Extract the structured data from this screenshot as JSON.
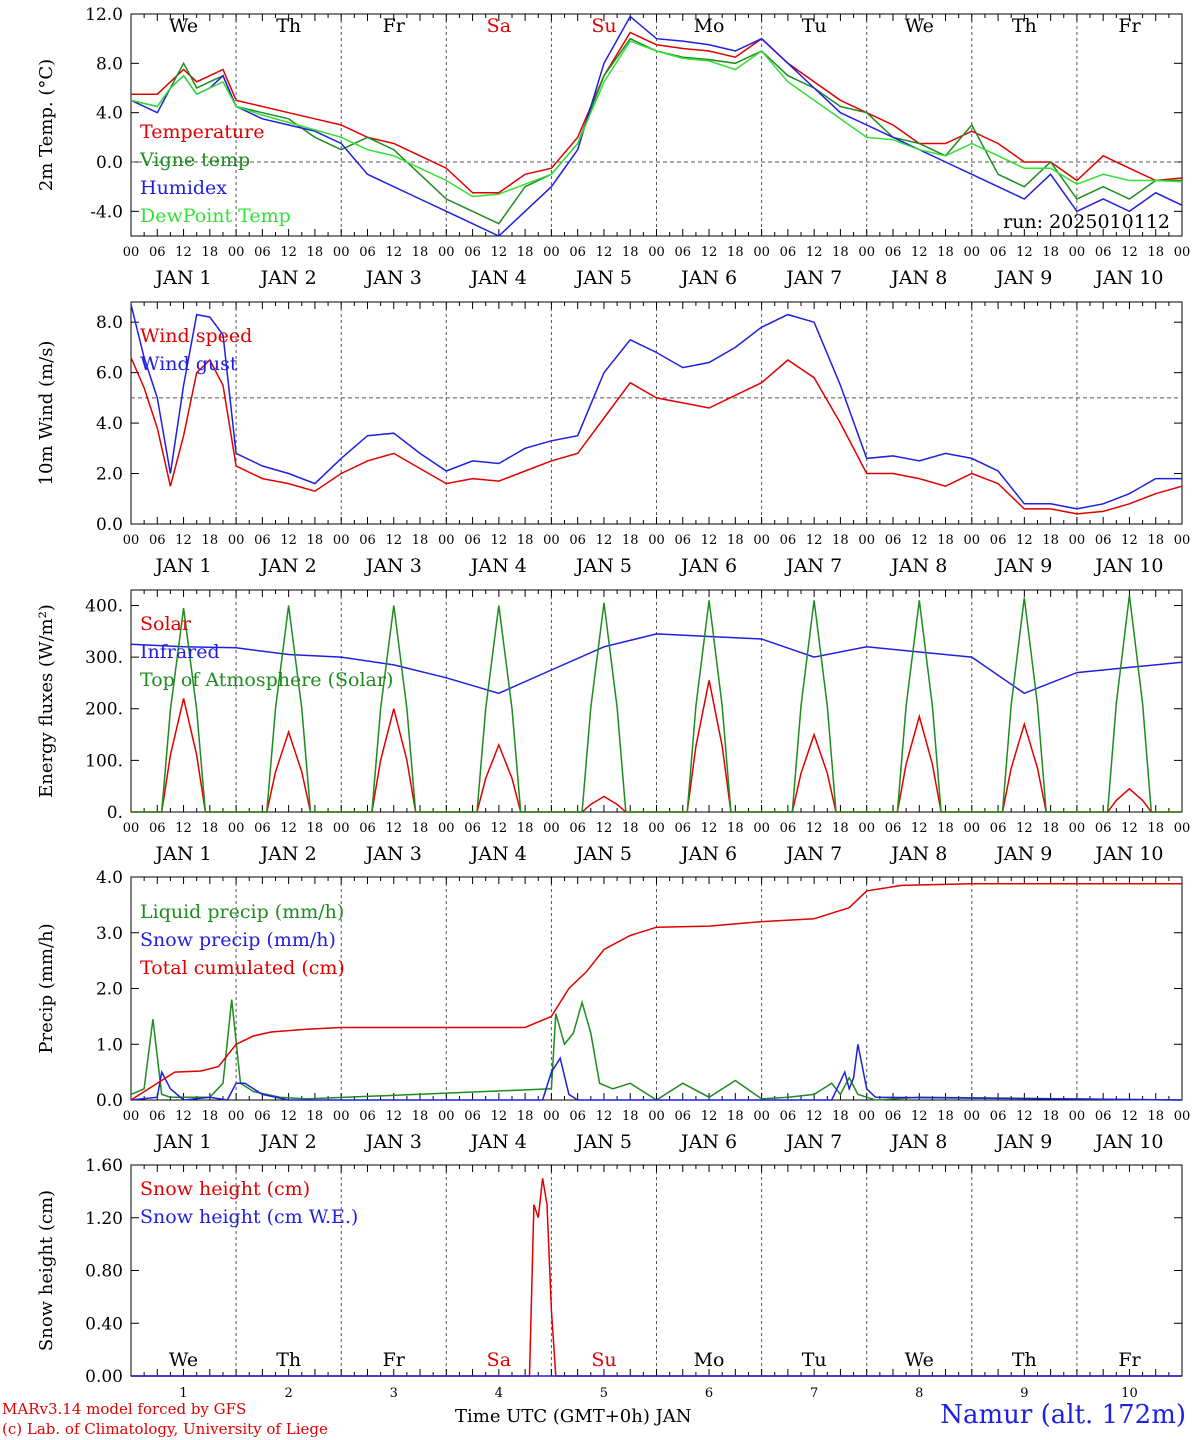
{
  "meta": {
    "run_label": "run: 2025010112",
    "footer_line1": "MARv3.14 model forced by GFS",
    "footer_line2": "(c) Lab. of Climatology, University of Liege",
    "station": "Namur (alt. 172m)",
    "time_axis_label": "Time UTC (GMT+0h) JAN"
  },
  "colors": {
    "red": "#e00000",
    "darkgreen": "#1e8c1e",
    "blue": "#1f1fe0",
    "lightgreen": "#33e033",
    "grid": "#666666"
  },
  "days": {
    "weekday_labels": [
      "We",
      "Th",
      "Fr",
      "Sa",
      "Su",
      "Mo",
      "Tu",
      "We",
      "Th",
      "Fr"
    ],
    "weekend_flags": [
      false,
      false,
      false,
      true,
      true,
      false,
      false,
      false,
      false,
      false
    ],
    "date_labels": [
      "JAN  1",
      "JAN  2",
      "JAN  3",
      "JAN  4",
      "JAN  5",
      "JAN  6",
      "JAN  7",
      "JAN  8",
      "JAN  9",
      "JAN 10"
    ],
    "day_numbers": [
      "1",
      "2",
      "3",
      "4",
      "5",
      "6",
      "7",
      "8",
      "9",
      "10"
    ],
    "hour_ticks": [
      "00",
      "06",
      "12",
      "18"
    ]
  },
  "chart_data": [
    {
      "type": "line",
      "ylabel": "2m Temp. (°C)",
      "ylim": [
        -6,
        12
      ],
      "yticks": [
        "-4.0",
        "0.0",
        "4.0",
        "8.0",
        "12.0"
      ],
      "ytick_values": [
        -4,
        0,
        4,
        8,
        12
      ],
      "ref_line": 0,
      "x_unit": "hours since JAN 1 00 UTC",
      "xlim": [
        0,
        240
      ],
      "series": [
        {
          "name": "Temperature",
          "color": "red",
          "x": [
            0,
            6,
            9,
            12,
            15,
            18,
            21,
            24,
            30,
            36,
            42,
            48,
            54,
            60,
            66,
            72,
            78,
            84,
            90,
            96,
            102,
            108,
            114,
            120,
            126,
            132,
            138,
            144,
            150,
            156,
            162,
            168,
            174,
            180,
            186,
            192,
            198,
            204,
            210,
            216,
            222,
            228,
            234,
            240
          ],
          "values": [
            5.5,
            5.5,
            6.5,
            7.5,
            6.5,
            7,
            7.5,
            5,
            4.5,
            4,
            3.5,
            3,
            2,
            1.5,
            0.5,
            -0.5,
            -2.5,
            -2.5,
            -1,
            -0.5,
            2,
            7,
            10.5,
            9.5,
            9.2,
            9,
            8.5,
            10,
            8,
            6.5,
            5,
            4,
            3,
            1.5,
            1.5,
            2.5,
            1.5,
            0,
            0,
            -1.5,
            0.5,
            -0.5,
            -1.5,
            -1.3
          ]
        },
        {
          "name": "Vigne temp",
          "color": "darkgreen",
          "x": [
            0,
            6,
            9,
            12,
            15,
            18,
            21,
            24,
            30,
            36,
            42,
            48,
            54,
            60,
            66,
            72,
            78,
            84,
            90,
            96,
            102,
            108,
            114,
            120,
            126,
            132,
            138,
            144,
            150,
            156,
            162,
            168,
            174,
            180,
            186,
            192,
            198,
            204,
            210,
            216,
            222,
            228,
            234,
            240
          ],
          "values": [
            5,
            4.5,
            6,
            8,
            6,
            6.5,
            7,
            4.5,
            4,
            3.5,
            2,
            1,
            2,
            1,
            -1,
            -3,
            -4,
            -5,
            -2,
            -1,
            1.5,
            7,
            10,
            9,
            8.5,
            8.3,
            8,
            9,
            7,
            6,
            4.5,
            4,
            2,
            1.5,
            0.5,
            3,
            -1,
            -2,
            0,
            -3,
            -2,
            -3,
            -1.5,
            -1.5
          ]
        },
        {
          "name": "Humidex",
          "color": "blue",
          "x": [
            0,
            6,
            9,
            12,
            15,
            18,
            21,
            24,
            30,
            36,
            42,
            48,
            54,
            60,
            66,
            72,
            78,
            84,
            90,
            96,
            102,
            108,
            114,
            120,
            126,
            132,
            138,
            144,
            150,
            156,
            162,
            168,
            174,
            180,
            186,
            192,
            198,
            204,
            210,
            216,
            222,
            228,
            234,
            240
          ],
          "values": [
            5,
            4,
            6,
            7,
            5.5,
            6,
            7,
            4.5,
            3.5,
            3,
            2.5,
            1.5,
            -1,
            -2,
            -3,
            -4,
            -5,
            -6,
            -4,
            -2,
            1,
            8,
            11.8,
            10,
            9.8,
            9.5,
            9,
            10,
            8,
            6,
            4,
            3,
            2,
            1,
            0,
            -1,
            -2,
            -3,
            -1,
            -4,
            -3,
            -4,
            -2.5,
            -3.5
          ]
        },
        {
          "name": "DewPoint Temp",
          "color": "lightgreen",
          "x": [
            0,
            6,
            9,
            12,
            15,
            18,
            21,
            24,
            30,
            36,
            42,
            48,
            54,
            60,
            66,
            72,
            78,
            84,
            90,
            96,
            102,
            108,
            114,
            120,
            126,
            132,
            138,
            144,
            150,
            156,
            162,
            168,
            174,
            180,
            186,
            192,
            198,
            204,
            210,
            216,
            222,
            228,
            234,
            240
          ],
          "values": [
            5,
            4.5,
            6,
            7,
            5.5,
            6,
            6.5,
            4.5,
            3.8,
            3.2,
            2.6,
            2,
            1,
            0.5,
            -0.5,
            -1.5,
            -2.8,
            -2.6,
            -1.8,
            -1,
            1.5,
            6.5,
            9.8,
            9,
            8.4,
            8.2,
            7.5,
            9,
            6.5,
            5,
            3.5,
            2,
            1.8,
            1,
            0.5,
            1.5,
            0.5,
            -0.5,
            -0.5,
            -1.8,
            -1,
            -1.5,
            -1.5,
            -1.6
          ]
        }
      ]
    },
    {
      "type": "line",
      "ylabel": "10m Wind (m/s)",
      "ylim": [
        0,
        8.8
      ],
      "yticks": [
        "0.0",
        "2.0",
        "4.0",
        "6.0",
        "8.0"
      ],
      "ytick_values": [
        0,
        2,
        4,
        6,
        8
      ],
      "ref_line": 5,
      "x_unit": "hours since JAN 1 00 UTC",
      "xlim": [
        0,
        240
      ],
      "series": [
        {
          "name": "Wind speed",
          "color": "red",
          "x": [
            0,
            3,
            6,
            9,
            12,
            15,
            18,
            21,
            24,
            30,
            36,
            42,
            48,
            54,
            60,
            66,
            72,
            78,
            84,
            90,
            96,
            102,
            108,
            114,
            120,
            126,
            132,
            138,
            144,
            150,
            156,
            162,
            168,
            174,
            180,
            186,
            192,
            198,
            204,
            210,
            216,
            222,
            228,
            234,
            240
          ],
          "values": [
            6.6,
            5.4,
            3.8,
            1.5,
            3.5,
            6,
            6.5,
            5.5,
            2.3,
            1.8,
            1.6,
            1.3,
            2,
            2.5,
            2.8,
            2.2,
            1.6,
            1.8,
            1.7,
            2.1,
            2.5,
            2.8,
            4.2,
            5.6,
            5,
            4.8,
            4.6,
            5.1,
            5.6,
            6.5,
            5.8,
            4,
            2,
            2,
            1.8,
            1.5,
            2,
            1.6,
            0.6,
            0.6,
            0.4,
            0.5,
            0.8,
            1.2,
            1.5
          ]
        },
        {
          "name": "Wind gust",
          "color": "blue",
          "x": [
            0,
            3,
            6,
            9,
            12,
            15,
            18,
            21,
            24,
            30,
            36,
            42,
            48,
            54,
            60,
            66,
            72,
            78,
            84,
            90,
            96,
            102,
            108,
            114,
            120,
            126,
            132,
            138,
            144,
            150,
            156,
            162,
            168,
            174,
            180,
            186,
            192,
            198,
            204,
            210,
            216,
            222,
            228,
            234,
            240
          ],
          "values": [
            8.7,
            6.6,
            5,
            2,
            5.5,
            8.3,
            8.2,
            7.5,
            2.8,
            2.3,
            2,
            1.6,
            2.6,
            3.5,
            3.6,
            2.8,
            2.1,
            2.5,
            2.4,
            3,
            3.3,
            3.5,
            6,
            7.3,
            6.8,
            6.2,
            6.4,
            7,
            7.8,
            8.3,
            8,
            5.5,
            2.6,
            2.7,
            2.5,
            2.8,
            2.6,
            2.1,
            0.8,
            0.8,
            0.6,
            0.8,
            1.2,
            1.8,
            1.8
          ]
        }
      ]
    },
    {
      "type": "line",
      "ylabel": "Energy fluxes (W/m²)",
      "ylim": [
        0,
        430
      ],
      "yticks": [
        "0.",
        "100.",
        "200.",
        "300.",
        "400."
      ],
      "ytick_values": [
        0,
        100,
        200,
        300,
        400
      ],
      "x_unit": "hours since JAN 1 00 UTC",
      "xlim": [
        0,
        240
      ],
      "series": [
        {
          "name": "Solar",
          "color": "red",
          "daily_peak_values": [
            220,
            155,
            200,
            130,
            30,
            255,
            150,
            185,
            170,
            45
          ],
          "daily_peak_hour": 12
        },
        {
          "name": "Infrared",
          "color": "blue",
          "x": [
            0,
            12,
            24,
            36,
            48,
            60,
            72,
            84,
            96,
            108,
            120,
            132,
            144,
            156,
            168,
            180,
            192,
            204,
            216,
            228,
            240
          ],
          "values": [
            325,
            320,
            318,
            305,
            300,
            285,
            260,
            230,
            275,
            320,
            345,
            340,
            335,
            300,
            320,
            310,
            300,
            230,
            270,
            280,
            290
          ]
        },
        {
          "name": "Top of Atmosphere (Solar)",
          "color": "darkgreen",
          "daily_peak_values": [
            395,
            400,
            400,
            400,
            405,
            410,
            410,
            410,
            415,
            420
          ],
          "daily_peak_hour": 12
        }
      ]
    },
    {
      "type": "line",
      "ylabel": "Precip (mm/h)",
      "ylim": [
        0,
        4
      ],
      "yticks": [
        "0.0",
        "1.0",
        "2.0",
        "3.0",
        "4.0"
      ],
      "ytick_values": [
        0,
        1,
        2,
        3,
        4
      ],
      "x_unit": "hours since JAN 1 00 UTC",
      "xlim": [
        0,
        240
      ],
      "series": [
        {
          "name": "Liquid precip (mm/h)",
          "color": "darkgreen",
          "x": [
            0,
            3,
            5,
            7,
            9,
            12,
            18,
            21,
            23,
            25,
            28,
            34,
            40,
            96,
            97,
            99,
            101,
            103,
            105,
            107,
            110,
            114,
            120,
            126,
            132,
            138,
            144,
            150,
            156,
            160,
            162,
            164,
            166,
            168,
            170,
            180,
            240
          ],
          "values": [
            0.1,
            0.2,
            1.45,
            0.1,
            0.05,
            0.05,
            0.05,
            0.3,
            1.8,
            0.3,
            0.15,
            0.05,
            0.02,
            0.2,
            1.55,
            1.0,
            1.2,
            1.75,
            1.2,
            0.3,
            0.2,
            0.3,
            0,
            0.3,
            0.05,
            0.35,
            0.02,
            0.05,
            0.1,
            0.3,
            0.1,
            0.4,
            0.1,
            0.05,
            0.0,
            0.05,
            0
          ]
        },
        {
          "name": "Snow precip (mm/h)",
          "color": "blue",
          "x": [
            0,
            6,
            7,
            9,
            12,
            18,
            22,
            24,
            26,
            30,
            36,
            42,
            94,
            96,
            98,
            100,
            102,
            160,
            163,
            164,
            165,
            166,
            168,
            170,
            240
          ],
          "values": [
            0,
            0.05,
            0.5,
            0.2,
            0,
            0.05,
            0,
            0.3,
            0.3,
            0.1,
            0,
            0,
            0,
            0.5,
            0.75,
            0.1,
            0,
            0,
            0.5,
            0.2,
            0.4,
            1.0,
            0.2,
            0.05,
            0
          ]
        },
        {
          "name": "Total cumulated (cm)",
          "color": "red",
          "x": [
            0,
            6,
            10,
            16,
            20,
            22,
            24,
            28,
            32,
            40,
            48,
            72,
            90,
            96,
            100,
            104,
            108,
            114,
            120,
            132,
            144,
            156,
            160,
            164,
            168,
            176,
            192,
            216,
            240
          ],
          "values": [
            0,
            0.3,
            0.5,
            0.52,
            0.6,
            0.8,
            1.0,
            1.15,
            1.22,
            1.27,
            1.3,
            1.3,
            1.3,
            1.5,
            2.0,
            2.3,
            2.7,
            2.95,
            3.1,
            3.12,
            3.2,
            3.25,
            3.35,
            3.45,
            3.75,
            3.85,
            3.88,
            3.88,
            3.88
          ]
        }
      ]
    },
    {
      "type": "line",
      "ylabel": "Snow height (cm)",
      "ylim": [
        0,
        1.6
      ],
      "yticks": [
        "0.00",
        "0.40",
        "0.80",
        "1.20",
        "1.60"
      ],
      "ytick_values": [
        0,
        0.4,
        0.8,
        1.2,
        1.6
      ],
      "x_unit": "hours since JAN 1 00 UTC",
      "xlim": [
        0,
        240
      ],
      "series": [
        {
          "name": "Snow height (cm)",
          "color": "red",
          "x": [
            0,
            91,
            92,
            93,
            94,
            95,
            96,
            97,
            98,
            240
          ],
          "values": [
            0,
            0,
            1.3,
            1.2,
            1.5,
            1.3,
            0.5,
            0,
            0,
            0
          ]
        },
        {
          "name": "Snow height (cm W.E.)",
          "color": "blue",
          "x": [
            0,
            240
          ],
          "values": [
            0,
            0
          ]
        }
      ]
    }
  ]
}
